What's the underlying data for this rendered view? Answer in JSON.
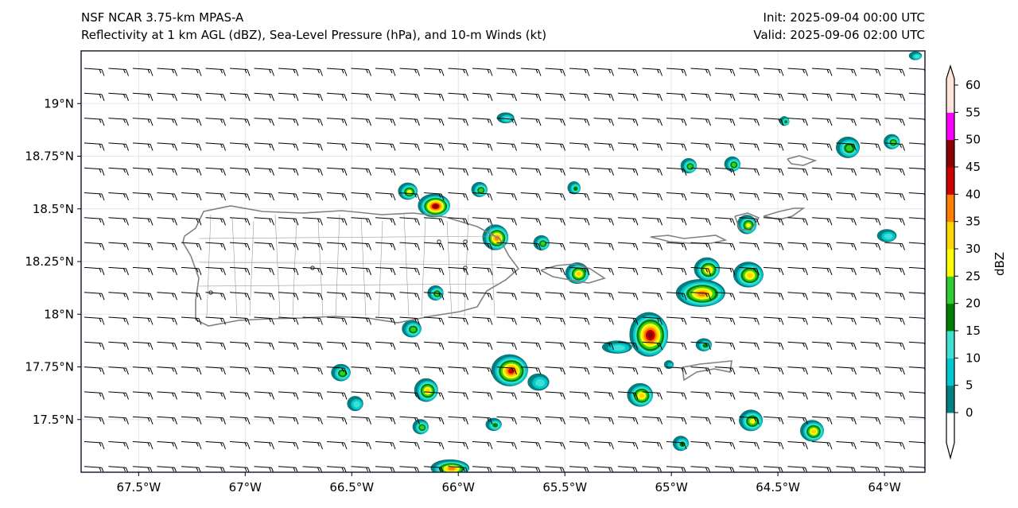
{
  "title": {
    "left_line1": "NSF NCAR 3.75-km MPAS-A",
    "left_line2": "Reflectivity at 1 km AGL (dBZ), Sea-Level Pressure (hPa), and 10-m Winds (kt)",
    "right_line1": "Init: 2025-09-04 00:00 UTC",
    "right_line2": "Valid: 2025-09-06 02:00 UTC"
  },
  "map": {
    "lon_range": [
      -67.77,
      -63.81
    ],
    "lat_range": [
      17.25,
      19.25
    ],
    "x_ticks": [
      {
        "lon": -67.5,
        "label": "67.5°W"
      },
      {
        "lon": -67,
        "label": "67°W"
      },
      {
        "lon": -66.5,
        "label": "66.5°W"
      },
      {
        "lon": -66,
        "label": "66°W"
      },
      {
        "lon": -65.5,
        "label": "65.5°W"
      },
      {
        "lon": -65,
        "label": "65°W"
      },
      {
        "lon": -64.5,
        "label": "64.5°W"
      },
      {
        "lon": -64,
        "label": "64°W"
      }
    ],
    "y_ticks": [
      {
        "lat": 19,
        "label": "19°N"
      },
      {
        "lat": 18.75,
        "label": "18.75°N"
      },
      {
        "lat": 18.5,
        "label": "18.5°N"
      },
      {
        "lat": 18.25,
        "label": "18.25°N"
      },
      {
        "lat": 18,
        "label": "18°N"
      },
      {
        "lat": 17.75,
        "label": "17.75°N"
      },
      {
        "lat": 17.5,
        "label": "17.5°N"
      }
    ],
    "wind": {
      "direction": "easterly",
      "speed_kt": 15
    },
    "reflectivity_cells": [
      {
        "lon": -66.114,
        "lat": 18.516,
        "rx_deg": 0.075,
        "ry_deg": 0.055,
        "max_dbz": 45
      },
      {
        "lon": -66.237,
        "lat": 18.584,
        "rx_deg": 0.045,
        "ry_deg": 0.04,
        "max_dbz": 25
      },
      {
        "lon": -65.901,
        "lat": 18.592,
        "rx_deg": 0.037,
        "ry_deg": 0.035,
        "max_dbz": 20
      },
      {
        "lon": -65.826,
        "lat": 18.365,
        "rx_deg": 0.06,
        "ry_deg": 0.06,
        "max_dbz": 35
      },
      {
        "lon": -65.61,
        "lat": 18.339,
        "rx_deg": 0.037,
        "ry_deg": 0.035,
        "max_dbz": 20
      },
      {
        "lon": -65.457,
        "lat": 18.6,
        "rx_deg": 0.03,
        "ry_deg": 0.03,
        "max_dbz": 15
      },
      {
        "lon": -65.778,
        "lat": 18.932,
        "rx_deg": 0.04,
        "ry_deg": 0.025,
        "max_dbz": 10
      },
      {
        "lon": -65.442,
        "lat": 18.195,
        "rx_deg": 0.055,
        "ry_deg": 0.05,
        "max_dbz": 30
      },
      {
        "lon": -66.107,
        "lat": 18.101,
        "rx_deg": 0.037,
        "ry_deg": 0.035,
        "max_dbz": 20
      },
      {
        "lon": -66.219,
        "lat": 17.931,
        "rx_deg": 0.045,
        "ry_deg": 0.04,
        "max_dbz": 20
      },
      {
        "lon": -65.106,
        "lat": 17.904,
        "rx_deg": 0.09,
        "ry_deg": 0.105,
        "max_dbz": 45
      },
      {
        "lon": -64.863,
        "lat": 18.101,
        "rx_deg": 0.115,
        "ry_deg": 0.065,
        "max_dbz": 35
      },
      {
        "lon": -64.833,
        "lat": 18.214,
        "rx_deg": 0.06,
        "ry_deg": 0.055,
        "max_dbz": 30
      },
      {
        "lon": -64.639,
        "lat": 18.188,
        "rx_deg": 0.07,
        "ry_deg": 0.06,
        "max_dbz": 30
      },
      {
        "lon": -64.646,
        "lat": 18.426,
        "rx_deg": 0.045,
        "ry_deg": 0.045,
        "max_dbz": 25
      },
      {
        "lon": -65.255,
        "lat": 17.844,
        "rx_deg": 0.07,
        "ry_deg": 0.03,
        "max_dbz": 10
      },
      {
        "lon": -64.848,
        "lat": 17.855,
        "rx_deg": 0.037,
        "ry_deg": 0.03,
        "max_dbz": 15
      },
      {
        "lon": -65.759,
        "lat": 17.734,
        "rx_deg": 0.085,
        "ry_deg": 0.075,
        "max_dbz": 40
      },
      {
        "lon": -65.624,
        "lat": 17.678,
        "rx_deg": 0.05,
        "ry_deg": 0.04,
        "max_dbz": 10
      },
      {
        "lon": -66.551,
        "lat": 17.723,
        "rx_deg": 0.045,
        "ry_deg": 0.04,
        "max_dbz": 20
      },
      {
        "lon": -66.151,
        "lat": 17.64,
        "rx_deg": 0.055,
        "ry_deg": 0.055,
        "max_dbz": 30
      },
      {
        "lon": -66.484,
        "lat": 17.576,
        "rx_deg": 0.037,
        "ry_deg": 0.035,
        "max_dbz": 10
      },
      {
        "lon": -65.147,
        "lat": 17.617,
        "rx_deg": 0.06,
        "ry_deg": 0.055,
        "max_dbz": 30
      },
      {
        "lon": -64.627,
        "lat": 17.496,
        "rx_deg": 0.055,
        "ry_deg": 0.05,
        "max_dbz": 25
      },
      {
        "lon": -64.34,
        "lat": 17.447,
        "rx_deg": 0.055,
        "ry_deg": 0.05,
        "max_dbz": 30
      },
      {
        "lon": -66.177,
        "lat": 17.466,
        "rx_deg": 0.037,
        "ry_deg": 0.035,
        "max_dbz": 20
      },
      {
        "lon": -65.834,
        "lat": 17.477,
        "rx_deg": 0.037,
        "ry_deg": 0.03,
        "max_dbz": 15
      },
      {
        "lon": -64.956,
        "lat": 17.387,
        "rx_deg": 0.037,
        "ry_deg": 0.035,
        "max_dbz": 15
      },
      {
        "lon": -66.039,
        "lat": 17.27,
        "rx_deg": 0.09,
        "ry_deg": 0.04,
        "max_dbz": 35
      },
      {
        "lon": -64.919,
        "lat": 18.705,
        "rx_deg": 0.037,
        "ry_deg": 0.035,
        "max_dbz": 20
      },
      {
        "lon": -64.714,
        "lat": 18.713,
        "rx_deg": 0.037,
        "ry_deg": 0.035,
        "max_dbz": 20
      },
      {
        "lon": -64.172,
        "lat": 18.792,
        "rx_deg": 0.055,
        "ry_deg": 0.05,
        "max_dbz": 20
      },
      {
        "lon": -63.966,
        "lat": 18.819,
        "rx_deg": 0.037,
        "ry_deg": 0.035,
        "max_dbz": 20
      },
      {
        "lon": -64.47,
        "lat": 18.917,
        "rx_deg": 0.022,
        "ry_deg": 0.022,
        "max_dbz": 15
      },
      {
        "lon": -63.989,
        "lat": 18.373,
        "rx_deg": 0.045,
        "ry_deg": 0.03,
        "max_dbz": 10
      },
      {
        "lon": -63.855,
        "lat": 19.227,
        "rx_deg": 0.03,
        "ry_deg": 0.02,
        "max_dbz": 10
      },
      {
        "lon": -65.012,
        "lat": 17.761,
        "rx_deg": 0.022,
        "ry_deg": 0.02,
        "max_dbz": 5
      }
    ]
  },
  "colorbar": {
    "label": "dBZ",
    "levels": [
      0,
      5,
      10,
      15,
      20,
      25,
      30,
      35,
      40,
      45,
      50,
      55,
      60
    ],
    "tick_labels": [
      "0",
      "5",
      "10",
      "15",
      "20",
      "25",
      "30",
      "35",
      "40",
      "45",
      "50",
      "55",
      "60"
    ],
    "colors": [
      "#008080",
      "#00c8d0",
      "#40e0d0",
      "#008000",
      "#32cd32",
      "#ffff00",
      "#ffd700",
      "#ff8000",
      "#cc0000",
      "#8b0000",
      "#ff00ff",
      "#ffe4da"
    ],
    "under_color": "#ffffff",
    "over_color": "#ffe4da"
  }
}
